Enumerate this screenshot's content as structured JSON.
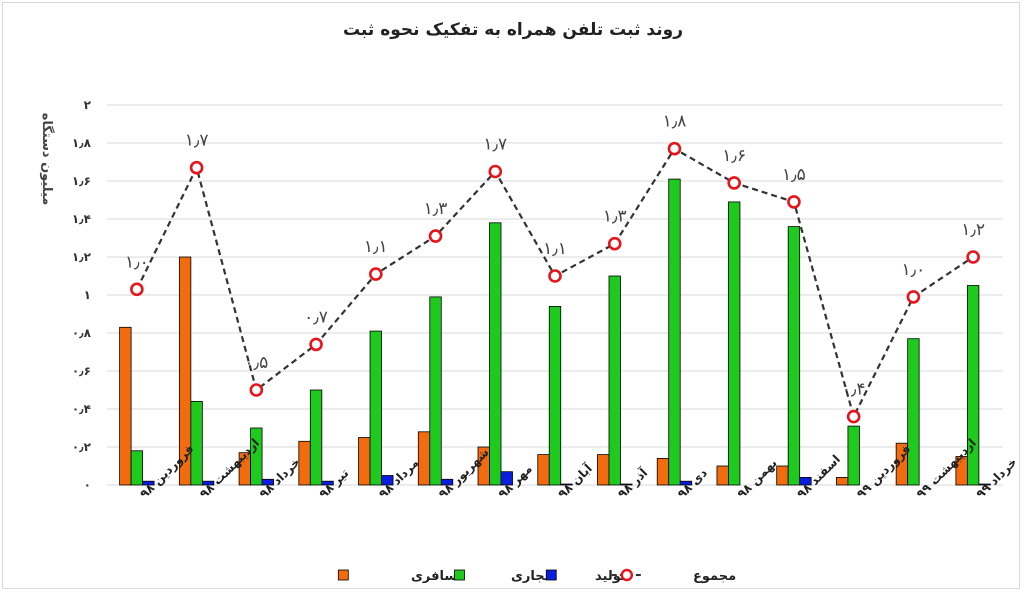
{
  "chart_data": {
    "type": "bar",
    "title": "روند ثبت تلفن همراه به تفکیک نحوه ثبت",
    "ylabel": "میلیون دستگاه",
    "xlabel": "",
    "ylim": [
      0,
      2
    ],
    "ytick_labels": [
      "۰",
      "۰٫۲",
      "۰٫۴",
      "۰٫۶",
      "۰٫۸",
      "۱",
      "۱٫۲",
      "۱٫۴",
      "۱٫۶",
      "۱٫۸",
      "۲"
    ],
    "grid": true,
    "legend_position": "bottom",
    "categories": [
      "فروردین ۹۸",
      "اردیبهشت ۹۸",
      "خرداد ۹۸",
      "تیر ۹۸",
      "مرداد ۹۸",
      "شهریور ۹۸",
      "مهر ۹۸",
      "آبان ۹۸",
      "آذر ۹۸",
      "دی ۹۸",
      "بهمن ۹۸",
      "اسفند ۹۸",
      "فروردین ۹۹",
      "اردیبهشت ۹۹",
      "خرداد ۹۹"
    ],
    "series": [
      {
        "name": "مسافری",
        "kind": "bar",
        "color": "#f26b0f",
        "values": [
          0.83,
          1.2,
          0.17,
          0.23,
          0.25,
          0.28,
          0.2,
          0.16,
          0.16,
          0.14,
          0.1,
          0.1,
          0.04,
          0.22,
          0.15
        ]
      },
      {
        "name": "تجاری",
        "kind": "bar",
        "color": "#1fca1f",
        "values": [
          0.18,
          0.44,
          0.3,
          0.5,
          0.81,
          0.99,
          1.38,
          0.94,
          1.1,
          1.61,
          1.49,
          1.36,
          0.31,
          0.77,
          1.05
        ]
      },
      {
        "name": "تولید",
        "kind": "bar",
        "color": "#0b1ee0",
        "values": [
          0.02,
          0.02,
          0.03,
          0.02,
          0.05,
          0.03,
          0.07,
          0.005,
          0.005,
          0.02,
          0.0,
          0.04,
          0.0,
          0.0,
          0.005
        ]
      },
      {
        "name": "مجموع",
        "kind": "line",
        "color": "#e8141a",
        "line_color": "#333333",
        "values": [
          1.03,
          1.67,
          0.5,
          0.74,
          1.11,
          1.31,
          1.65,
          1.1,
          1.27,
          1.77,
          1.59,
          1.49,
          0.36,
          0.99,
          1.2
        ]
      }
    ],
    "total_labels": [
      "۱٫۰",
      "۱٫۷",
      "۰٫۵",
      "۰٫۷",
      "۱٫۱",
      "۱٫۳",
      "۱٫۷",
      "۱٫۱",
      "۱٫۳",
      "۱٫۸",
      "۱٫۶",
      "۱٫۵",
      "۰٫۴",
      "۱٫۰",
      "۱٫۲"
    ]
  }
}
